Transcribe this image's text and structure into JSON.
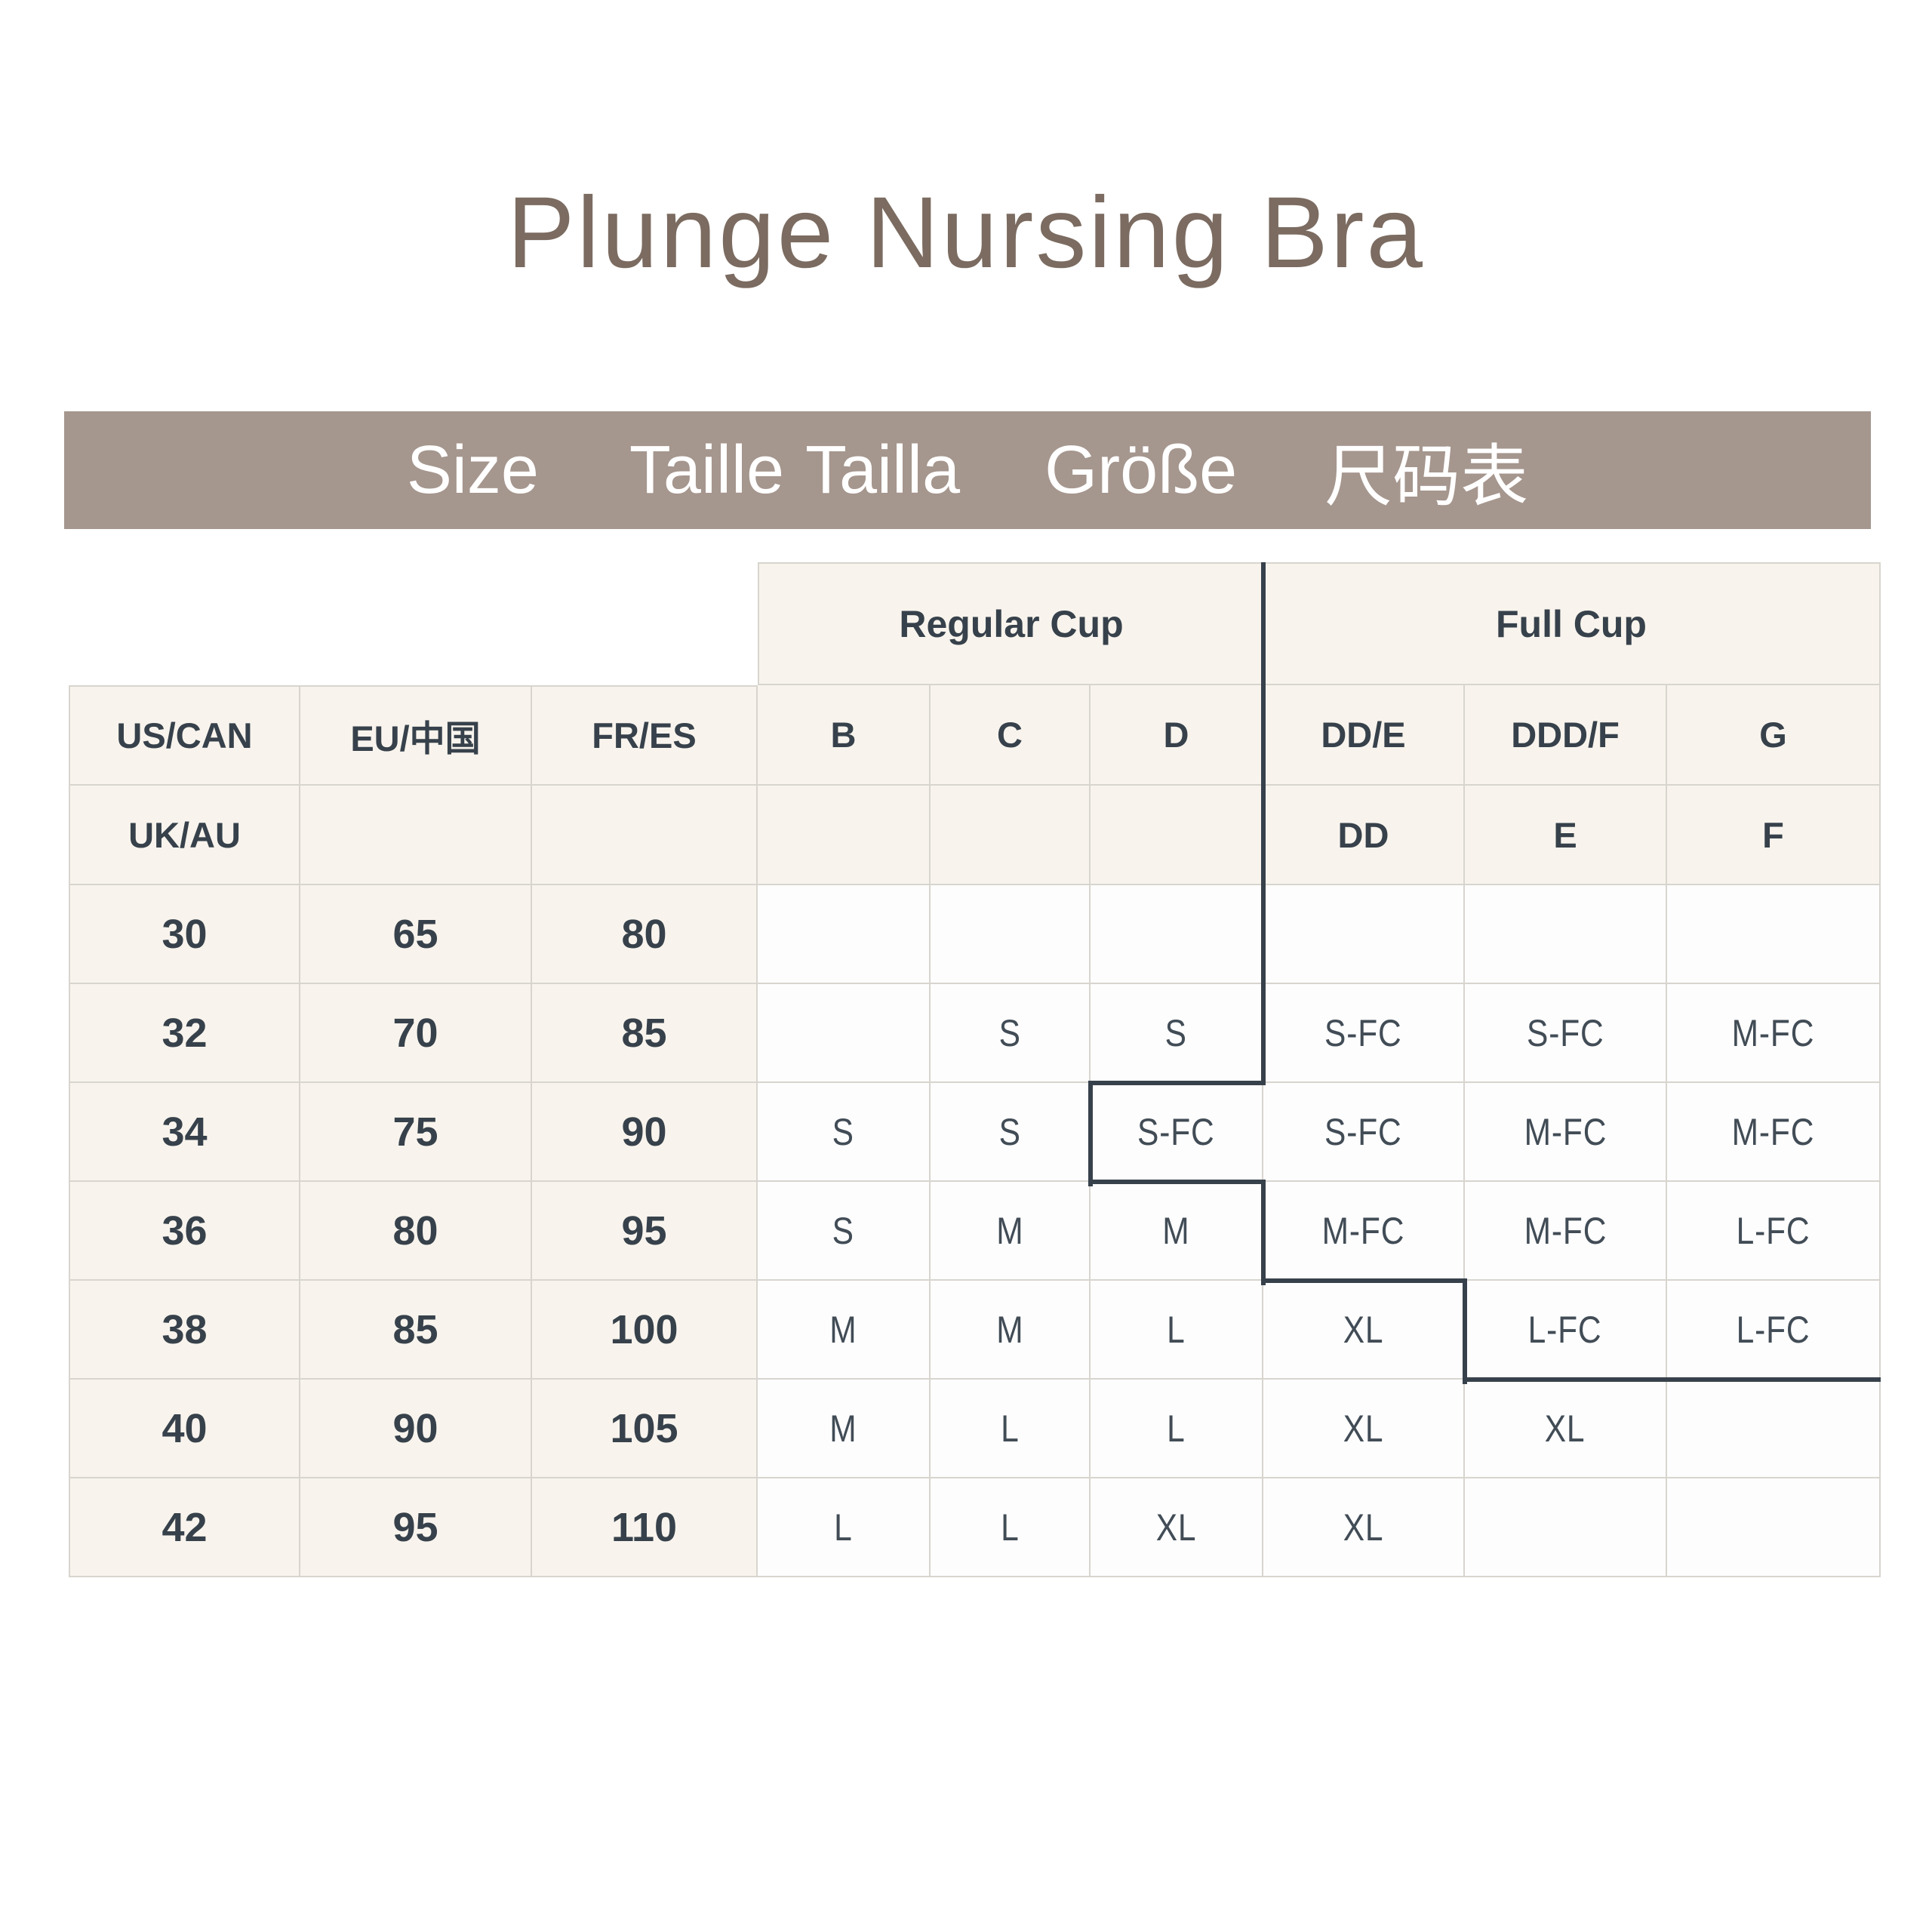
{
  "title": "Plunge Nursing Bra",
  "banner": {
    "labels": [
      "Size",
      "Taille",
      "Tailla",
      "Größe",
      "尺码表"
    ]
  },
  "table": {
    "group_headers": {
      "regular": "Regular Cup",
      "full": "Full Cup"
    },
    "columns": [
      "US/CAN",
      "EU/中国",
      "FR/ES",
      "B",
      "C",
      "D",
      "DD/E",
      "DDD/F",
      "G"
    ],
    "subheader": [
      "UK/AU",
      "",
      "",
      "",
      "",
      "",
      "DD",
      "E",
      "F"
    ],
    "rows": [
      [
        "30",
        "65",
        "80",
        "",
        "",
        "",
        "",
        "",
        ""
      ],
      [
        "32",
        "70",
        "85",
        "",
        "S",
        "S",
        "S-FC",
        "S-FC",
        "M-FC"
      ],
      [
        "34",
        "75",
        "90",
        "S",
        "S",
        "S-FC",
        "S-FC",
        "M-FC",
        "M-FC"
      ],
      [
        "36",
        "80",
        "95",
        "S",
        "M",
        "M",
        "M-FC",
        "M-FC",
        "L-FC"
      ],
      [
        "38",
        "85",
        "100",
        "M",
        "M",
        "L",
        "XL",
        "L-FC",
        "L-FC"
      ],
      [
        "40",
        "90",
        "105",
        "M",
        "L",
        "L",
        "XL",
        "XL",
        ""
      ],
      [
        "42",
        "95",
        "110",
        "L",
        "L",
        "XL",
        "XL",
        "",
        ""
      ]
    ]
  },
  "colors": {
    "banner_bg": "#a5968e",
    "cream_cell": "#f8f4ed",
    "white_cell": "#fdfdfd",
    "grid_line": "#d8d5cf",
    "dark_text": "#37414b",
    "boundary_line": "#37414b",
    "title_text": "#7b6b60"
  }
}
